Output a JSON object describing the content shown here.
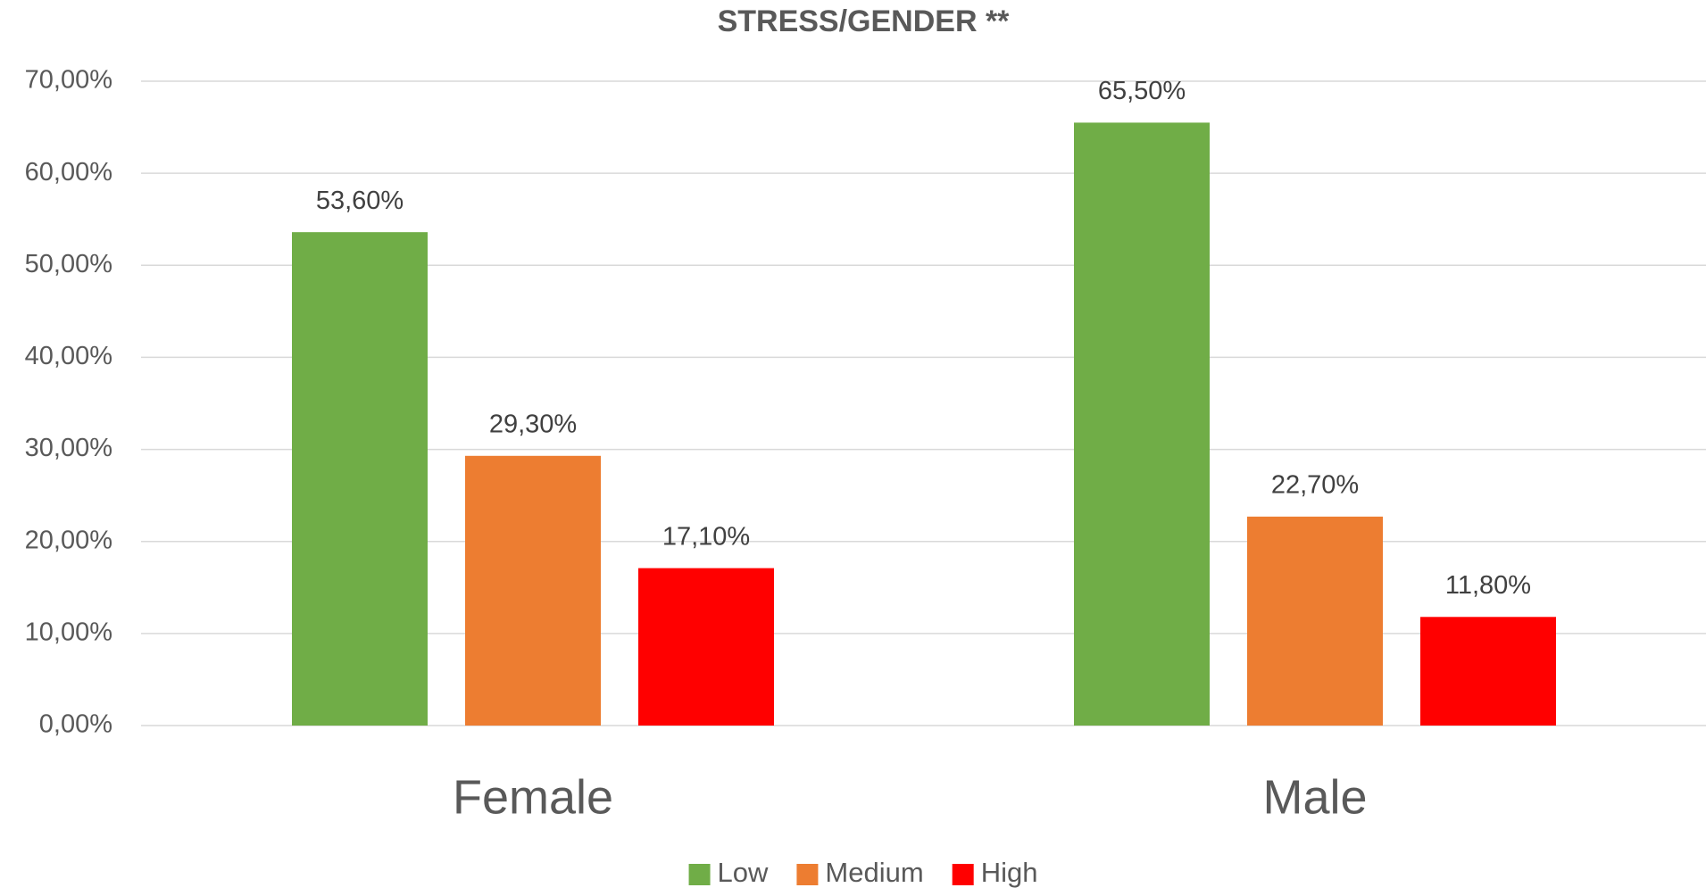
{
  "chart_data": {
    "type": "bar",
    "title": "STRESS/GENDER **",
    "categories": [
      "Female",
      "Male"
    ],
    "series": [
      {
        "name": "Low",
        "color": "#70ad47",
        "values": [
          53.6,
          65.5
        ],
        "value_labels": [
          "53,60%",
          "65,50%"
        ]
      },
      {
        "name": "Medium",
        "color": "#ed7d31",
        "values": [
          29.3,
          22.7
        ],
        "value_labels": [
          "29,30%",
          "22,70%"
        ]
      },
      {
        "name": "High",
        "color": "#ff0000",
        "values": [
          17.1,
          11.8
        ],
        "value_labels": [
          "17,10%",
          "11,80%"
        ]
      }
    ],
    "ylim": [
      0,
      70
    ],
    "yticks": [
      {
        "value": 0,
        "label": "0,00%"
      },
      {
        "value": 10,
        "label": "10,00%"
      },
      {
        "value": 20,
        "label": "20,00%"
      },
      {
        "value": 30,
        "label": "30,00%"
      },
      {
        "value": 40,
        "label": "40,00%"
      },
      {
        "value": 50,
        "label": "50,00%"
      },
      {
        "value": 60,
        "label": "60,00%"
      },
      {
        "value": 70,
        "label": "70,00%"
      }
    ],
    "grid": true,
    "legend": "bottom"
  }
}
